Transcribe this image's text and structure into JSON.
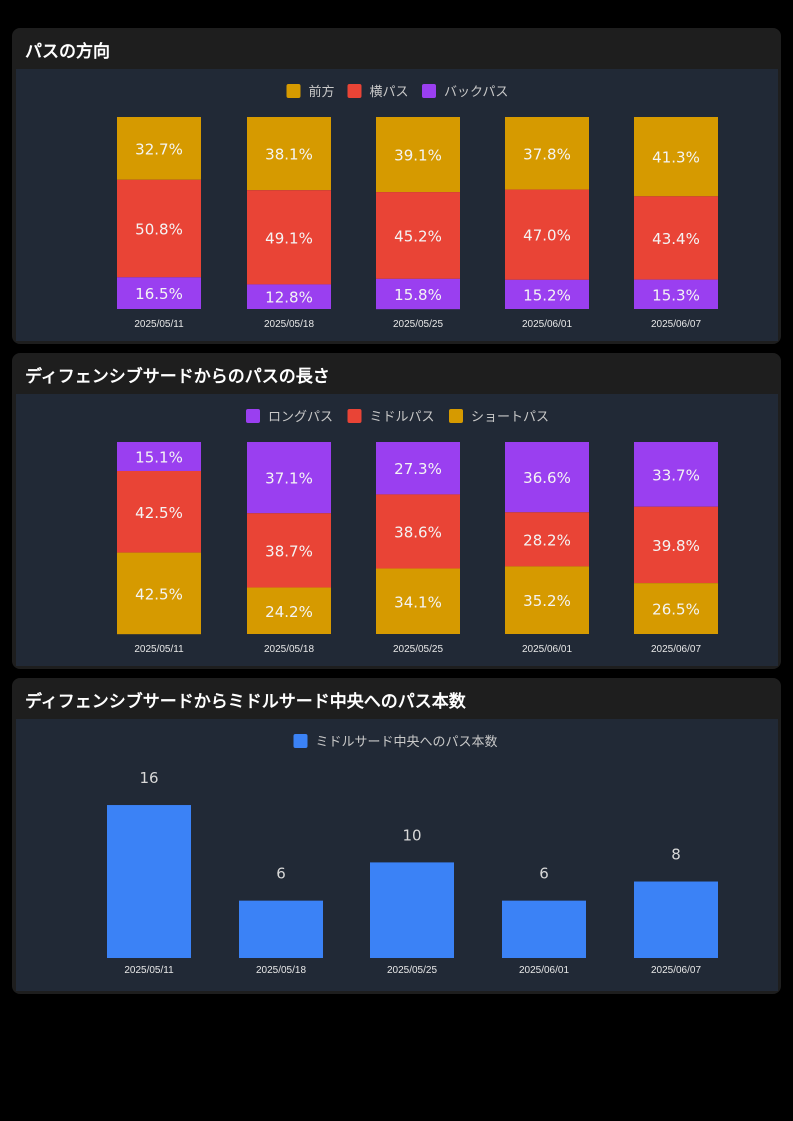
{
  "chart_data": [
    {
      "type": "bar",
      "stacked": true,
      "percent": true,
      "title": "パスの方向",
      "categories": [
        "2025/05/11",
        "2025/05/18",
        "2025/05/25",
        "2025/06/01",
        "2025/06/07"
      ],
      "series": [
        {
          "name": "前方",
          "color": "#d69a00",
          "values": [
            32.7,
            38.1,
            39.1,
            37.8,
            41.3
          ]
        },
        {
          "name": "横パス",
          "color": "#e94436",
          "values": [
            50.8,
            49.1,
            45.2,
            47.0,
            43.4
          ]
        },
        {
          "name": "バックパス",
          "color": "#9a3ff0",
          "values": [
            16.5,
            12.8,
            15.8,
            15.2,
            15.3
          ]
        }
      ],
      "legend": "top"
    },
    {
      "type": "bar",
      "stacked": true,
      "percent": true,
      "title": "ディフェンシブサードからのパスの長さ",
      "categories": [
        "2025/05/11",
        "2025/05/18",
        "2025/05/25",
        "2025/06/01",
        "2025/06/07"
      ],
      "series": [
        {
          "name": "ロングパス",
          "color": "#9a3ff0",
          "values": [
            15.1,
            37.1,
            27.3,
            36.6,
            33.7
          ]
        },
        {
          "name": "ミドルパス",
          "color": "#e94436",
          "values": [
            42.5,
            38.7,
            38.6,
            28.2,
            39.8
          ]
        },
        {
          "name": "ショートパス",
          "color": "#d69a00",
          "values": [
            42.5,
            24.2,
            34.1,
            35.2,
            26.5
          ]
        }
      ],
      "legend": "top"
    },
    {
      "type": "bar",
      "title": "ディフェンシブサードからミドルサード中央へのパス本数",
      "categories": [
        "2025/05/11",
        "2025/05/18",
        "2025/05/25",
        "2025/06/01",
        "2025/06/07"
      ],
      "series": [
        {
          "name": "ミドルサード中央へのパス本数",
          "color": "#3b82f6",
          "values": [
            16,
            6,
            10,
            6,
            8
          ]
        }
      ],
      "ylim": [
        0,
        18
      ],
      "legend": "top"
    }
  ]
}
